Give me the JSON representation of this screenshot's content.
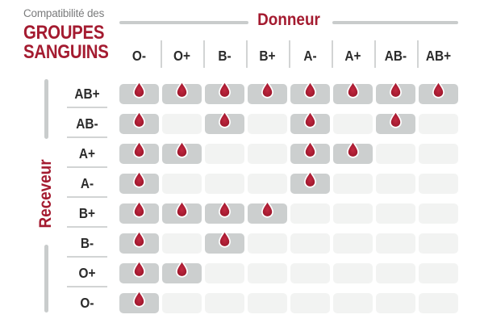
{
  "chart_data": {
    "type": "heatmap",
    "title": "Compatibilité des GROUPES SANGUINS",
    "x_axis_label": "Donneur",
    "y_axis_label": "Receveur",
    "x_categories": [
      "O-",
      "O+",
      "B-",
      "B+",
      "A-",
      "A+",
      "AB-",
      "AB+"
    ],
    "y_categories": [
      "AB+",
      "AB-",
      "A+",
      "A-",
      "B+",
      "B-",
      "O+",
      "O-"
    ],
    "values": [
      [
        1,
        1,
        1,
        1,
        1,
        1,
        1,
        1
      ],
      [
        1,
        0,
        1,
        0,
        1,
        0,
        1,
        0
      ],
      [
        1,
        1,
        0,
        0,
        1,
        1,
        0,
        0
      ],
      [
        1,
        0,
        0,
        0,
        1,
        0,
        0,
        0
      ],
      [
        1,
        1,
        1,
        1,
        0,
        0,
        0,
        0
      ],
      [
        1,
        0,
        1,
        0,
        0,
        0,
        0,
        0
      ],
      [
        1,
        1,
        0,
        0,
        0,
        0,
        0,
        0
      ],
      [
        1,
        0,
        0,
        0,
        0,
        0,
        0,
        0
      ]
    ],
    "value_meaning": {
      "1": "compatible — blood drop icon shown in gray cell",
      "0": "not compatible — empty light cell"
    },
    "legend_position": "none",
    "grid": "rounded cells with gaps"
  },
  "header": {
    "eyebrow": "Compatibilité des",
    "title_line1": "GROUPES",
    "title_line2": "SANGUINS"
  },
  "axes": {
    "donor": "Donneur",
    "recipient": "Receveur"
  },
  "icons": {
    "compatible_marker": "blood-drop-icon"
  },
  "colors": {
    "accent": "#A41B30",
    "ink": "#2B2B2B",
    "muted": "#7B7C7D",
    "rail": "#C9CCCC",
    "sep": "#D2D4D4",
    "cell_on": "#CCCFCF",
    "cell_off": "#F2F3F2",
    "drop_core": "#C22840",
    "drop_mid": "#A81C32",
    "drop_edge": "#8E1526"
  }
}
